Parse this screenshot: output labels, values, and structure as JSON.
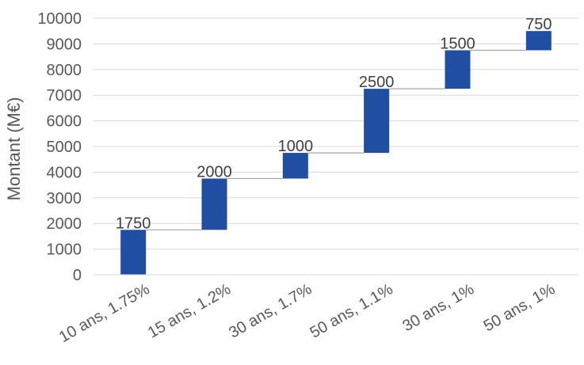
{
  "chart_data": {
    "type": "bar",
    "subtype": "waterfall",
    "title": "",
    "xlabel": "",
    "ylabel": "Montant (M€)",
    "categories": [
      "10 ans, 1.75%",
      "15 ans, 1.2%",
      "30 ans, 1.7%",
      "50 ans, 1.1%",
      "30 ans, 1%",
      "50 ans, 1%"
    ],
    "values": [
      1750,
      2000,
      1000,
      2500,
      1500,
      750
    ],
    "ylim": [
      0,
      10000
    ],
    "yticks": [
      0,
      1000,
      2000,
      3000,
      4000,
      5000,
      6000,
      7000,
      8000,
      9000,
      10000
    ],
    "grid": true,
    "legend": "none",
    "bar_color": "#1f4ea3",
    "connector_color": "#a6a6a6",
    "grid_color": "#d9d9d9"
  }
}
